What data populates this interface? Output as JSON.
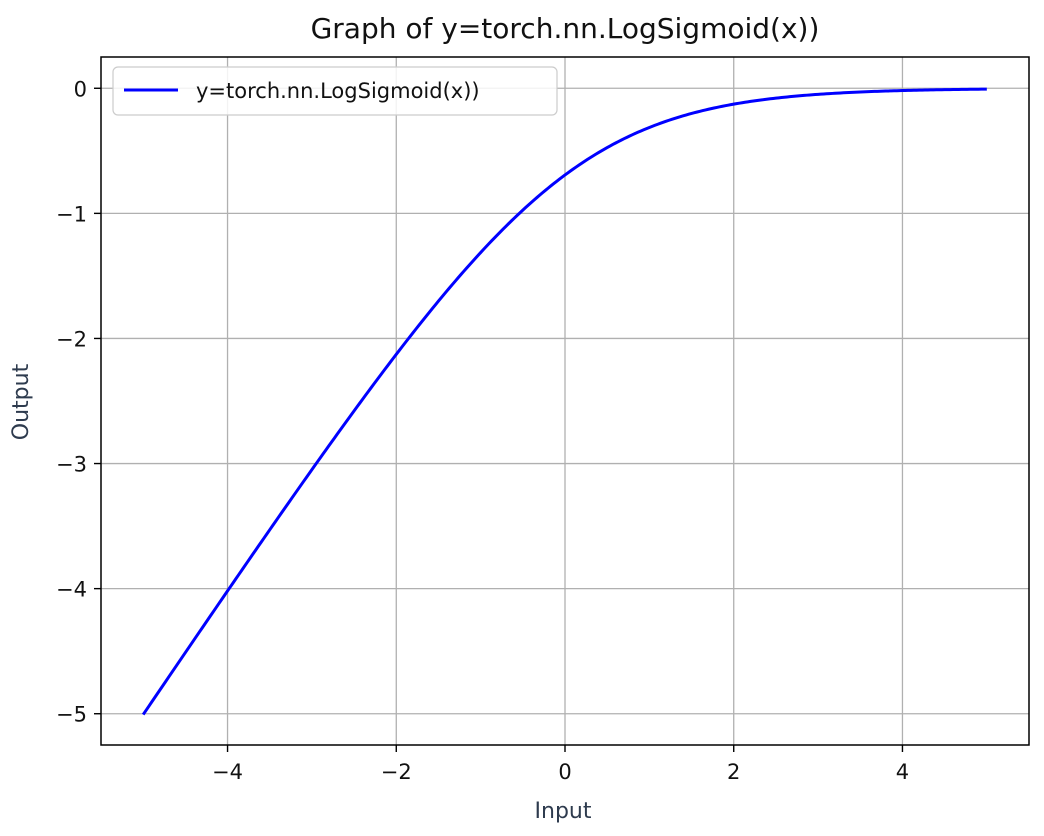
{
  "chart_data": {
    "type": "line",
    "title": "Graph of y=torch.nn.LogSigmoid(x))",
    "xlabel": "Input",
    "ylabel": "Output",
    "xlim": [
      -5.5,
      5.5
    ],
    "ylim": [
      -5.25,
      0.25
    ],
    "grid": true,
    "legend_position": "top-left",
    "xticks": [
      -4,
      -2,
      0,
      2,
      4
    ],
    "xtick_labels": [
      "−4",
      "−2",
      "0",
      "2",
      "4"
    ],
    "yticks": [
      0,
      -1,
      -2,
      -3,
      -4,
      -5
    ],
    "ytick_labels": [
      "0",
      "−1",
      "−2",
      "−3",
      "−4",
      "−5"
    ],
    "series": [
      {
        "name": "y=torch.nn.LogSigmoid(x))",
        "color": "#0000ff",
        "x": [
          -5,
          -4.5,
          -4,
          -3.5,
          -3,
          -2.5,
          -2,
          -1.5,
          -1,
          -0.5,
          0,
          0.5,
          1,
          1.5,
          2,
          2.5,
          3,
          3.5,
          4,
          4.5,
          5
        ],
        "y": [
          -5.007,
          -4.511,
          -4.018,
          -3.53,
          -3.049,
          -2.579,
          -2.127,
          -1.701,
          -1.313,
          -0.974,
          -0.693,
          -0.474,
          -0.313,
          -0.201,
          -0.127,
          -0.079,
          -0.049,
          -0.03,
          -0.018,
          -0.011,
          -0.007
        ]
      }
    ]
  }
}
